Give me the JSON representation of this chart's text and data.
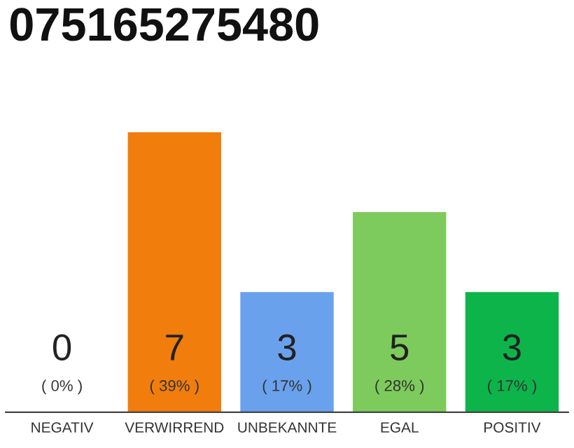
{
  "chart_data": {
    "type": "bar",
    "title": "075165275480",
    "categories": [
      "NEGATIV",
      "VERWIRREND",
      "UNBEKANNTE",
      "EGAL",
      "POSITIV"
    ],
    "values": [
      0,
      7,
      3,
      5,
      3
    ],
    "colors": [
      "#888888",
      "#f07d0c",
      "#6aa1ed",
      "#7dcb5c",
      "#0db44a"
    ],
    "data_labels": true,
    "annotations": [
      "( 0% )",
      "( 39% )",
      "( 17% )",
      "( 28% )",
      "( 17% )"
    ],
    "grid": false,
    "legend": false
  }
}
